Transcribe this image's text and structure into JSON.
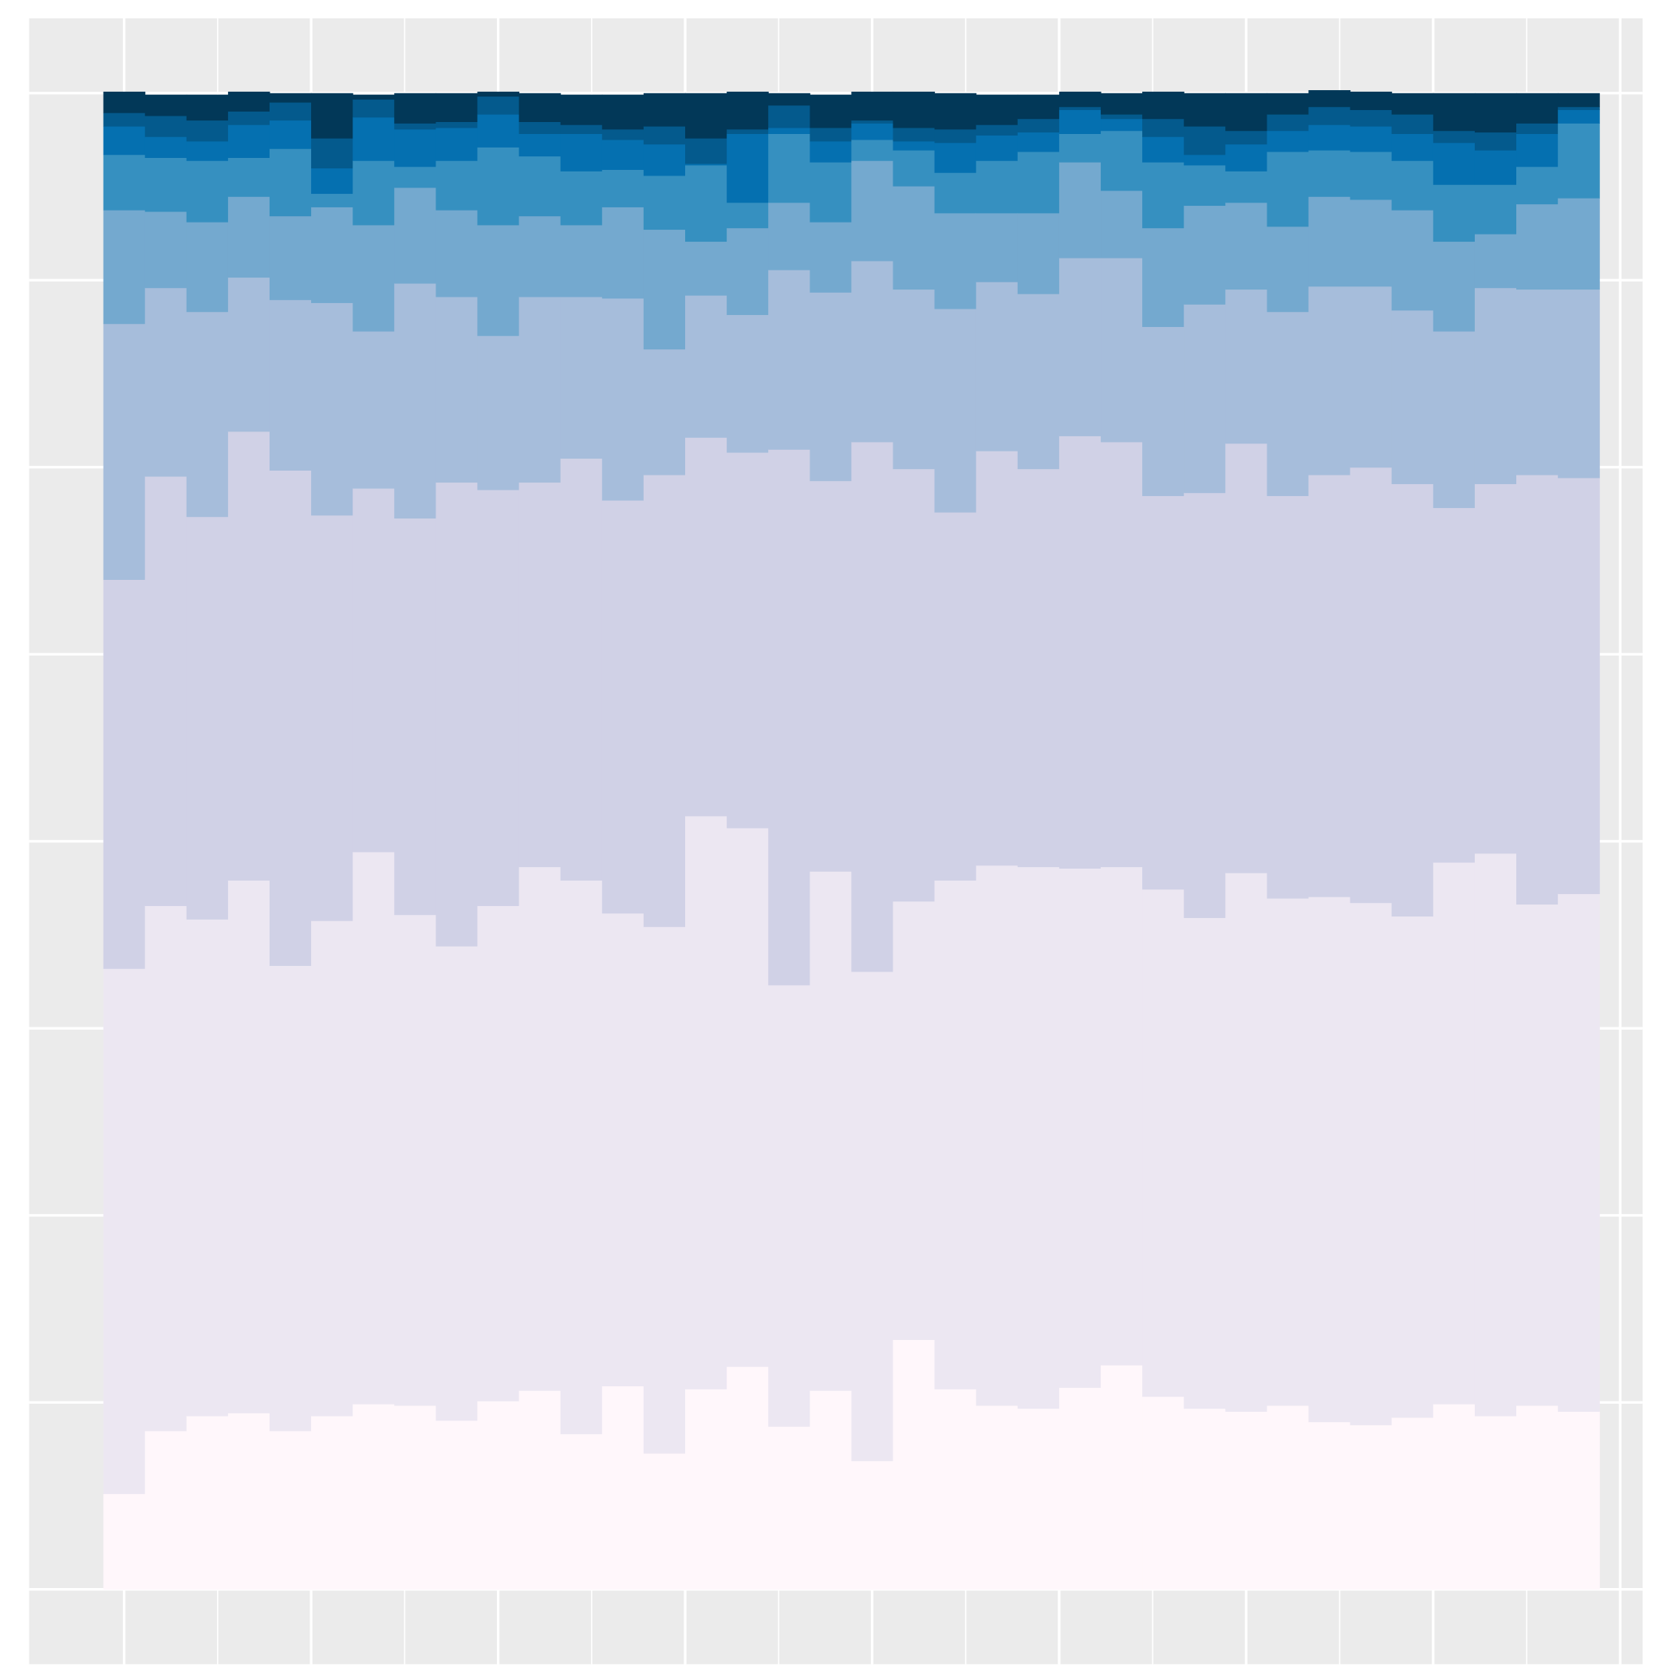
{
  "chart_data": {
    "type": "histogram",
    "stacked": true,
    "bins": [
      -2.78,
      2.78,
      8.33,
      13.89,
      19.44,
      25,
      30.56,
      36.11,
      41.67,
      47.22,
      52.78,
      58.33,
      63.89,
      69.44,
      75,
      80.56,
      86.11,
      91.67,
      97.22,
      102.78,
      108.33,
      113.89,
      119.44,
      125,
      130.56,
      136.11,
      141.67,
      147.22,
      152.78,
      158.33,
      163.89,
      169.44,
      175,
      180.56,
      186.11,
      191.67,
      197.22
    ],
    "xlim": [
      -12.7,
      203
    ],
    "ylim": [
      -0.05,
      1.05
    ],
    "xticks": [
      0,
      25,
      50,
      75,
      100,
      125,
      150,
      175,
      200
    ],
    "xticks_minor": [
      12.5,
      37.5,
      62.5,
      87.5,
      112.5,
      137.5,
      162.5,
      187.5
    ],
    "yticks": [
      0,
      0.125,
      0.25,
      0.375,
      0.5,
      0.625,
      0.75,
      0.875,
      1
    ],
    "grid": true,
    "series": [
      {
        "color": "#fff7fb",
        "values": [
          0.064,
          0.106,
          0.116,
          0.118,
          0.106,
          0.116,
          0.124,
          0.123,
          0.113,
          0.126,
          0.133,
          0.104,
          0.136,
          0.091,
          0.134,
          0.149,
          0.109,
          0.133,
          0.086,
          0.167,
          0.134,
          0.123,
          0.121,
          0.135,
          0.15,
          0.129,
          0.121,
          0.119,
          0.123,
          0.112,
          0.11,
          0.115,
          0.124,
          0.116,
          0.123,
          0.119
        ]
      },
      {
        "color": "#ece7f2",
        "values": [
          0.351,
          0.351,
          0.332,
          0.356,
          0.311,
          0.331,
          0.369,
          0.328,
          0.317,
          0.331,
          0.35,
          0.37,
          0.316,
          0.352,
          0.383,
          0.36,
          0.295,
          0.347,
          0.327,
          0.293,
          0.34,
          0.361,
          0.362,
          0.347,
          0.333,
          0.339,
          0.328,
          0.36,
          0.339,
          0.351,
          0.349,
          0.335,
          0.362,
          0.376,
          0.335,
          0.346
        ]
      },
      {
        "color": "#d0d1e6",
        "values": [
          0.26,
          0.287,
          0.269,
          0.3,
          0.331,
          0.271,
          0.243,
          0.265,
          0.31,
          0.278,
          0.257,
          0.282,
          0.276,
          0.302,
          0.253,
          0.251,
          0.358,
          0.261,
          0.354,
          0.289,
          0.246,
          0.277,
          0.266,
          0.289,
          0.284,
          0.263,
          0.284,
          0.287,
          0.269,
          0.282,
          0.291,
          0.289,
          0.237,
          0.247,
          0.287,
          0.278
        ]
      },
      {
        "color": "#a6bddb",
        "values": [
          0.171,
          0.126,
          0.137,
          0.103,
          0.114,
          0.142,
          0.105,
          0.157,
          0.124,
          0.103,
          0.124,
          0.108,
          0.135,
          0.084,
          0.095,
          0.092,
          0.12,
          0.126,
          0.121,
          0.12,
          0.136,
          0.113,
          0.117,
          0.119,
          0.123,
          0.113,
          0.126,
          0.103,
          0.123,
          0.126,
          0.121,
          0.116,
          0.118,
          0.131,
          0.124,
          0.126
        ]
      },
      {
        "color": "#74a9cf",
        "values": [
          0.076,
          0.051,
          0.06,
          0.054,
          0.056,
          0.064,
          0.071,
          0.064,
          0.058,
          0.074,
          0.054,
          0.048,
          0.061,
          0.08,
          0.036,
          0.058,
          0.045,
          0.047,
          0.067,
          0.069,
          0.064,
          0.046,
          0.054,
          0.064,
          0.045,
          0.066,
          0.066,
          0.058,
          0.057,
          0.06,
          0.058,
          0.067,
          0.06,
          0.036,
          0.057,
          0.061
        ]
      },
      {
        "color": "#3690c0",
        "values": [
          0.037,
          0.036,
          0.041,
          0.026,
          0.045,
          0.009,
          0.043,
          0.014,
          0.033,
          0.052,
          0.04,
          0.036,
          0.025,
          0.036,
          0.051,
          0.017,
          0.046,
          0.04,
          0.014,
          0.024,
          0.027,
          0.035,
          0.041,
          0.019,
          0.04,
          0.044,
          0.027,
          0.021,
          0.05,
          0.031,
          0.032,
          0.033,
          0.038,
          0.033,
          0.025,
          0.05
        ]
      },
      {
        "color": "#0570b0",
        "values": [
          0.019,
          0.014,
          0.013,
          0.022,
          0.019,
          0.017,
          0.029,
          0.025,
          0.022,
          0.022,
          0.015,
          0.025,
          0.02,
          0.021,
          0.001,
          0.046,
          0.004,
          0.014,
          0.011,
          0.006,
          0.02,
          0.017,
          0.013,
          0.016,
          0.008,
          0.017,
          0.007,
          0.018,
          0.014,
          0.017,
          0.017,
          0.018,
          0.028,
          0.023,
          0.022,
          0.009
        ]
      },
      {
        "color": "#045a8d",
        "values": [
          0.009,
          0.014,
          0.014,
          0.009,
          0.012,
          0.02,
          0.012,
          0.004,
          0.004,
          0.012,
          0.008,
          0.006,
          0.007,
          0.012,
          0.017,
          0.003,
          0.015,
          0.009,
          0.002,
          0.009,
          0.009,
          0.007,
          0.009,
          0.002,
          0.003,
          0.012,
          0.019,
          0.009,
          0.011,
          0.012,
          0.011,
          0.013,
          0.008,
          0.012,
          0.007,
          0.002
        ]
      },
      {
        "color": "#023858",
        "values": [
          0.014,
          0.014,
          0.017,
          0.013,
          0.006,
          0.03,
          0.003,
          0.02,
          0.019,
          0.003,
          0.019,
          0.02,
          0.023,
          0.022,
          0.03,
          0.025,
          0.008,
          0.022,
          0.019,
          0.024,
          0.024,
          0.02,
          0.016,
          0.01,
          0.014,
          0.018,
          0.022,
          0.025,
          0.014,
          0.011,
          0.012,
          0.014,
          0.025,
          0.026,
          0.02,
          0.009
        ]
      }
    ]
  }
}
